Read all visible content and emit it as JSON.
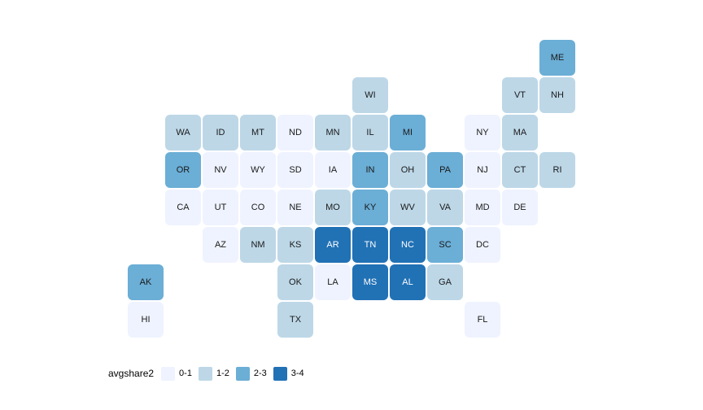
{
  "page": {
    "background_color": "#ffffff"
  },
  "chart_data": {
    "type": "heatmap",
    "subtype": "statebins-tile-grid-map",
    "title": "",
    "legend": {
      "title": "avgshare2",
      "position": "bottom-left",
      "items": [
        {
          "label": "0-1",
          "color": "#EFF3FF"
        },
        {
          "label": "1-2",
          "color": "#BDD7E7"
        },
        {
          "label": "2-3",
          "color": "#6BAED6"
        },
        {
          "label": "3-4",
          "color": "#2171B5"
        }
      ]
    },
    "bins": [
      "0-1",
      "1-2",
      "2-3",
      "3-4"
    ],
    "bin_colors": [
      "#EFF3FF",
      "#BDD7E7",
      "#6BAED6",
      "#2171B5"
    ],
    "bin_label_colors": [
      "#1a1a1a",
      "#1a1a1a",
      "#1a1a1a",
      "#ffffff"
    ],
    "states": [
      {
        "abbr": "ME",
        "col": 12,
        "row": 1,
        "bin": "2-3"
      },
      {
        "abbr": "WI",
        "col": 7,
        "row": 2,
        "bin": "1-2"
      },
      {
        "abbr": "VT",
        "col": 11,
        "row": 2,
        "bin": "1-2"
      },
      {
        "abbr": "NH",
        "col": 12,
        "row": 2,
        "bin": "1-2"
      },
      {
        "abbr": "WA",
        "col": 2,
        "row": 3,
        "bin": "1-2"
      },
      {
        "abbr": "ID",
        "col": 3,
        "row": 3,
        "bin": "1-2"
      },
      {
        "abbr": "MT",
        "col": 4,
        "row": 3,
        "bin": "1-2"
      },
      {
        "abbr": "ND",
        "col": 5,
        "row": 3,
        "bin": "0-1"
      },
      {
        "abbr": "MN",
        "col": 6,
        "row": 3,
        "bin": "1-2"
      },
      {
        "abbr": "IL",
        "col": 7,
        "row": 3,
        "bin": "1-2"
      },
      {
        "abbr": "MI",
        "col": 8,
        "row": 3,
        "bin": "2-3"
      },
      {
        "abbr": "NY",
        "col": 10,
        "row": 3,
        "bin": "0-1"
      },
      {
        "abbr": "MA",
        "col": 11,
        "row": 3,
        "bin": "1-2"
      },
      {
        "abbr": "OR",
        "col": 2,
        "row": 4,
        "bin": "2-3"
      },
      {
        "abbr": "NV",
        "col": 3,
        "row": 4,
        "bin": "0-1"
      },
      {
        "abbr": "WY",
        "col": 4,
        "row": 4,
        "bin": "0-1"
      },
      {
        "abbr": "SD",
        "col": 5,
        "row": 4,
        "bin": "0-1"
      },
      {
        "abbr": "IA",
        "col": 6,
        "row": 4,
        "bin": "0-1"
      },
      {
        "abbr": "IN",
        "col": 7,
        "row": 4,
        "bin": "2-3"
      },
      {
        "abbr": "OH",
        "col": 8,
        "row": 4,
        "bin": "1-2"
      },
      {
        "abbr": "PA",
        "col": 9,
        "row": 4,
        "bin": "2-3"
      },
      {
        "abbr": "NJ",
        "col": 10,
        "row": 4,
        "bin": "0-1"
      },
      {
        "abbr": "CT",
        "col": 11,
        "row": 4,
        "bin": "1-2"
      },
      {
        "abbr": "RI",
        "col": 12,
        "row": 4,
        "bin": "1-2"
      },
      {
        "abbr": "CA",
        "col": 2,
        "row": 5,
        "bin": "0-1"
      },
      {
        "abbr": "UT",
        "col": 3,
        "row": 5,
        "bin": "0-1"
      },
      {
        "abbr": "CO",
        "col": 4,
        "row": 5,
        "bin": "0-1"
      },
      {
        "abbr": "NE",
        "col": 5,
        "row": 5,
        "bin": "0-1"
      },
      {
        "abbr": "MO",
        "col": 6,
        "row": 5,
        "bin": "1-2"
      },
      {
        "abbr": "KY",
        "col": 7,
        "row": 5,
        "bin": "2-3"
      },
      {
        "abbr": "WV",
        "col": 8,
        "row": 5,
        "bin": "1-2"
      },
      {
        "abbr": "VA",
        "col": 9,
        "row": 5,
        "bin": "1-2"
      },
      {
        "abbr": "MD",
        "col": 10,
        "row": 5,
        "bin": "0-1"
      },
      {
        "abbr": "DE",
        "col": 11,
        "row": 5,
        "bin": "0-1"
      },
      {
        "abbr": "AZ",
        "col": 3,
        "row": 6,
        "bin": "0-1"
      },
      {
        "abbr": "NM",
        "col": 4,
        "row": 6,
        "bin": "1-2"
      },
      {
        "abbr": "KS",
        "col": 5,
        "row": 6,
        "bin": "1-2"
      },
      {
        "abbr": "AR",
        "col": 6,
        "row": 6,
        "bin": "3-4"
      },
      {
        "abbr": "TN",
        "col": 7,
        "row": 6,
        "bin": "3-4"
      },
      {
        "abbr": "NC",
        "col": 8,
        "row": 6,
        "bin": "3-4"
      },
      {
        "abbr": "SC",
        "col": 9,
        "row": 6,
        "bin": "2-3"
      },
      {
        "abbr": "DC",
        "col": 10,
        "row": 6,
        "bin": "0-1"
      },
      {
        "abbr": "AK",
        "col": 1,
        "row": 7,
        "bin": "2-3"
      },
      {
        "abbr": "OK",
        "col": 5,
        "row": 7,
        "bin": "1-2"
      },
      {
        "abbr": "LA",
        "col": 6,
        "row": 7,
        "bin": "0-1"
      },
      {
        "abbr": "MS",
        "col": 7,
        "row": 7,
        "bin": "3-4"
      },
      {
        "abbr": "AL",
        "col": 8,
        "row": 7,
        "bin": "3-4"
      },
      {
        "abbr": "GA",
        "col": 9,
        "row": 7,
        "bin": "1-2"
      },
      {
        "abbr": "HI",
        "col": 1,
        "row": 8,
        "bin": "0-1"
      },
      {
        "abbr": "TX",
        "col": 5,
        "row": 8,
        "bin": "1-2"
      },
      {
        "abbr": "FL",
        "col": 10,
        "row": 8,
        "bin": "0-1"
      }
    ]
  }
}
